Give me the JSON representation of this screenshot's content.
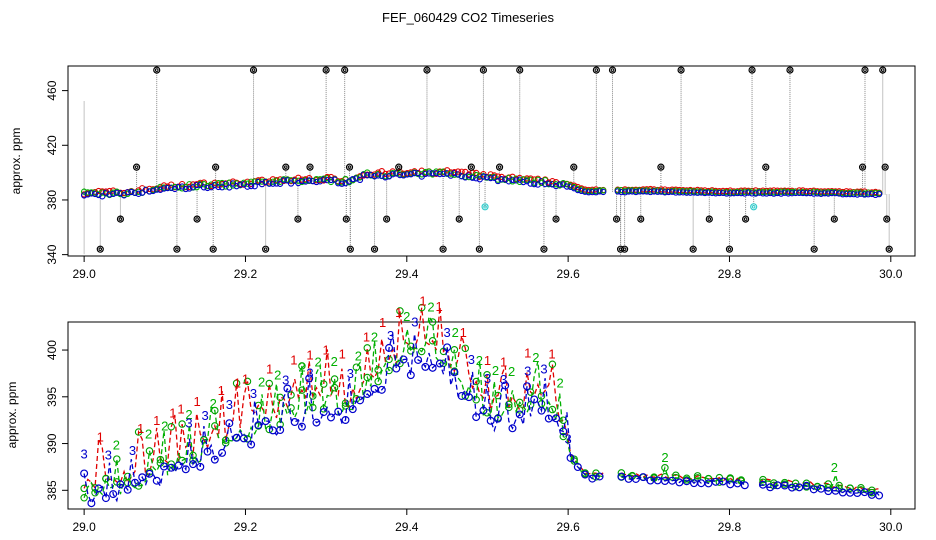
{
  "title": "FEF_060429  CO2 Timeseries",
  "chart_data": [
    {
      "type": "scatter",
      "ylabel": "approx. ppm",
      "xlim": [
        28.98,
        30.03
      ],
      "ylim": [
        339,
        478
      ],
      "x_ticks": [
        29.0,
        29.2,
        29.4,
        29.6,
        29.8,
        30.0
      ],
      "x_tick_labels": [
        "29.0",
        "29.2",
        "29.4",
        "29.6",
        "29.8",
        "30.0"
      ],
      "y_ticks": [
        340,
        380,
        420,
        460
      ],
      "y_tick_labels": [
        "340",
        "380",
        "420",
        "460"
      ],
      "baseline": {
        "x": [
          29.0,
          29.05,
          29.1,
          29.15,
          29.2,
          29.25,
          29.3,
          29.33,
          29.35,
          29.4,
          29.45,
          29.5,
          29.55,
          29.58,
          29.6,
          29.62,
          29.7,
          29.8,
          29.9,
          29.99
        ],
        "y": [
          384,
          384,
          388,
          390,
          391,
          393,
          394,
          393,
          398,
          398,
          399,
          396,
          393,
          392,
          390,
          386,
          386,
          385,
          385,
          384
        ]
      },
      "outliers": {
        "x": [
          29.02,
          29.045,
          29.065,
          29.09,
          29.115,
          29.14,
          29.16,
          29.163,
          29.21,
          29.225,
          29.25,
          29.265,
          29.28,
          29.3,
          29.323,
          29.325,
          29.329,
          29.33,
          29.36,
          29.375,
          29.39,
          29.425,
          29.445,
          29.465,
          29.48,
          29.49,
          29.495,
          29.497,
          29.515,
          29.54,
          29.57,
          29.585,
          29.607,
          29.635,
          29.655,
          29.66,
          29.665,
          29.67,
          29.69,
          29.715,
          29.74,
          29.755,
          29.775,
          29.8,
          29.82,
          29.828,
          29.83,
          29.845,
          29.875,
          29.905,
          29.93,
          29.965,
          29.968,
          29.99,
          29.993,
          29.995,
          29.998
        ],
        "y": [
          344,
          366,
          404,
          475,
          344,
          366,
          344,
          404,
          475,
          344,
          404,
          366,
          404,
          475,
          475,
          366,
          404,
          344,
          344,
          366,
          404,
          475,
          344,
          366,
          404,
          344,
          475,
          375,
          404,
          475,
          344,
          366,
          404,
          475,
          475,
          366,
          344,
          344,
          366,
          404,
          475,
          344,
          366,
          344,
          366,
          475,
          375,
          404,
          475,
          344,
          366,
          404,
          475,
          475,
          404,
          366,
          344
        ]
      }
    },
    {
      "type": "line",
      "ylabel": "approx. ppm",
      "xlim": [
        28.98,
        30.03
      ],
      "ylim": [
        383,
        403
      ],
      "x_ticks": [
        29.0,
        29.2,
        29.4,
        29.6,
        29.8,
        30.0
      ],
      "x_tick_labels": [
        "29.0",
        "29.2",
        "29.4",
        "29.6",
        "29.8",
        "30.0"
      ],
      "y_ticks": [
        385,
        390,
        395,
        400
      ],
      "y_tick_labels": [
        "385",
        "390",
        "395",
        "400"
      ],
      "series": [
        {
          "name": "1",
          "color": "#e00000",
          "offset": 1.9,
          "spikes_x": [
            29.02,
            29.07,
            29.09,
            29.11,
            29.12,
            29.14,
            29.17,
            29.19,
            29.2,
            29.23,
            29.26,
            29.28,
            29.3,
            29.32,
            29.35,
            29.37,
            29.39,
            29.42,
            29.44,
            29.47,
            29.5,
            29.52,
            29.55,
            29.58
          ]
        },
        {
          "name": "2",
          "color": "#00b000",
          "offset": 0.9,
          "spikes_x": [
            29.04,
            29.08,
            29.1,
            29.13,
            29.16,
            29.22,
            29.24,
            29.27,
            29.29,
            29.31,
            29.34,
            29.36,
            29.4,
            29.43,
            29.46,
            29.49,
            29.51,
            29.53,
            29.56,
            29.59,
            29.72,
            29.93
          ]
        },
        {
          "name": "3",
          "color": "#0000cc",
          "offset": 0.0,
          "spikes_x": [
            29.0,
            29.03,
            29.06,
            29.13,
            29.15,
            29.18,
            29.21,
            29.25,
            29.28,
            29.33,
            29.38,
            29.41,
            29.45,
            29.48,
            29.5,
            29.52,
            29.55,
            29.57,
            29.6
          ]
        }
      ],
      "baseline": {
        "x": [
          29.0,
          29.03,
          29.06,
          29.1,
          29.15,
          29.2,
          29.25,
          29.3,
          29.33,
          29.36,
          29.4,
          29.43,
          29.46,
          29.5,
          29.53,
          29.56,
          29.58,
          29.6,
          29.62,
          29.7,
          29.8,
          29.9,
          29.99
        ],
        "y": [
          384.4,
          384.3,
          384.8,
          386.5,
          388.5,
          390.5,
          392.3,
          393.6,
          393.0,
          396.0,
          398.2,
          399.2,
          396.5,
          392.5,
          392.3,
          393.8,
          393.2,
          389.0,
          386.5,
          386.2,
          385.8,
          385.3,
          384.6
        ]
      },
      "gaps_x": [
        [
          29.645,
          29.662
        ],
        [
          29.823,
          29.835
        ]
      ]
    }
  ]
}
